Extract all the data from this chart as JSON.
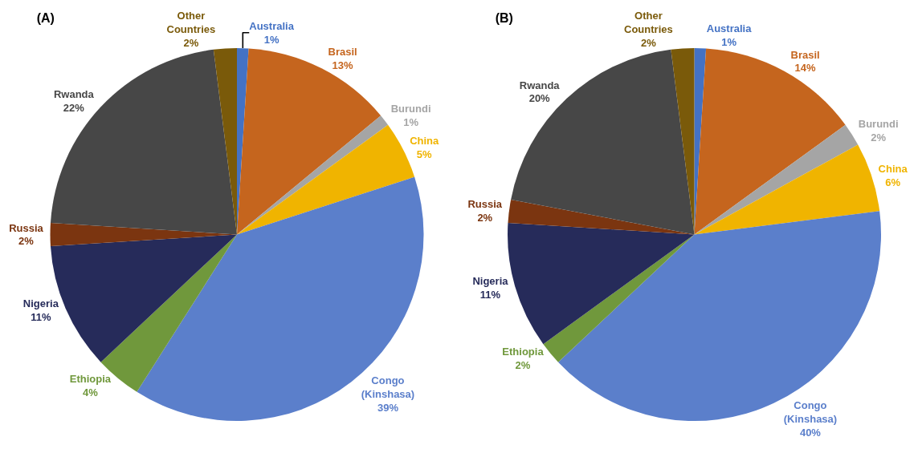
{
  "chart_data": [
    {
      "type": "pie",
      "title": "(A)",
      "categories": [
        "Australia",
        "Brasil",
        "Burundi",
        "China",
        "Congo (Kinshasa)",
        "Ethiopia",
        "Nigeria",
        "Russia",
        "Rwanda",
        "Other Countries"
      ],
      "values": [
        1,
        13,
        1,
        5,
        39,
        4,
        11,
        2,
        22,
        2
      ],
      "value_labels": [
        "1%",
        "13%",
        "1%",
        "5%",
        "39%",
        "4%",
        "11%",
        "2%",
        "22%",
        "2%"
      ],
      "colors": [
        "#4472c4",
        "#c5651e",
        "#a5a5a5",
        "#f0b400",
        "#5b7fcb",
        "#70983c",
        "#262b5a",
        "#7b3510",
        "#474747",
        "#7a5a0a"
      ],
      "legend": false
    },
    {
      "type": "pie",
      "title": "(B)",
      "categories": [
        "Australia",
        "Brasil",
        "Burundi",
        "China",
        "Congo (Kinshasa)",
        "Ethiopia",
        "Nigeria",
        "Russia",
        "Rwanda",
        "Other Countries"
      ],
      "values": [
        1,
        14,
        2,
        6,
        40,
        2,
        11,
        2,
        20,
        2
      ],
      "value_labels": [
        "1%",
        "14%",
        "2%",
        "6%",
        "40%",
        "2%",
        "11%",
        "2%",
        "20%",
        "2%"
      ],
      "colors": [
        "#4472c4",
        "#c5651e",
        "#a5a5a5",
        "#f0b400",
        "#5b7fcb",
        "#70983c",
        "#262b5a",
        "#7b3510",
        "#474747",
        "#7a5a0a"
      ],
      "legend": false
    }
  ]
}
